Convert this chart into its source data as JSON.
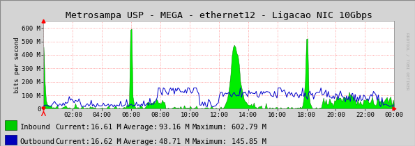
{
  "title": "Metrosampa USP - MEGA - ethernet12 - Ligacao NIC 10Gbps",
  "ylabel": "bits per second",
  "xlabel_ticks": [
    "02:00",
    "04:00",
    "06:00",
    "08:00",
    "10:00",
    "12:00",
    "14:00",
    "16:00",
    "18:00",
    "20:00",
    "22:00",
    "00:00"
  ],
  "ylim": [
    0,
    650000000
  ],
  "yticks": [
    0,
    100000000,
    200000000,
    300000000,
    400000000,
    500000000,
    600000000
  ],
  "ytick_labels": [
    "0",
    "100 M",
    "200 M",
    "300 M",
    "400 M",
    "500 M",
    "600 M"
  ],
  "bg_color": "#d4d4d4",
  "plot_bg_color": "#ffffff",
  "grid_color": "#ff8888",
  "inbound_color": "#00ee00",
  "inbound_edge_color": "#006600",
  "outbound_color": "#0000cc",
  "legend_inbound_color": "#00cc00",
  "legend_outbound_color": "#0000bb",
  "rrdtool_label": "RRDTOOL / TOBI OETIKER",
  "title_fontsize": 9.5,
  "axis_fontsize": 6.5,
  "legend_fontsize": 7.5,
  "inbound_current": "16.61 M",
  "inbound_average": "93.16 M",
  "inbound_maximum": "602.79 M",
  "outbound_current": "16.62 M",
  "outbound_average": "48.71 M",
  "outbound_maximum": "145.85 M"
}
